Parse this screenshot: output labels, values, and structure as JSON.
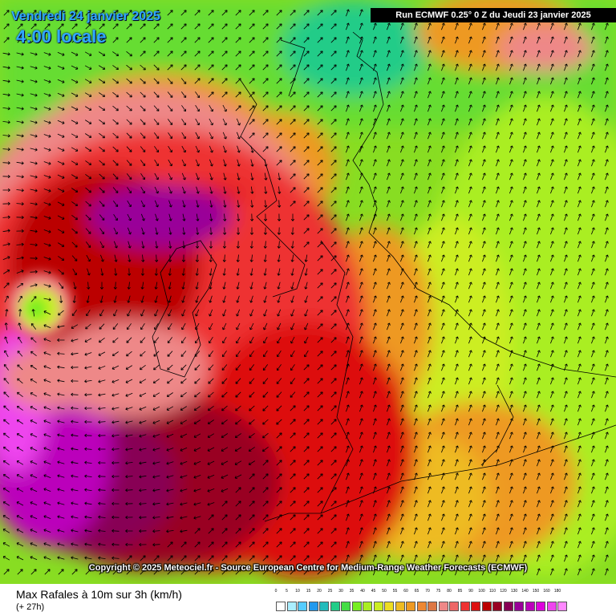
{
  "header": {
    "date": "Vendredi 24 janvier 2025",
    "time": "4:00 locale",
    "run": "Run ECMWF 0.25° 0 Z du Jeudi 23 janvier 2025"
  },
  "copyright": "Copyright © 2025 Meteociel.fr - Source European Centre for Medium-Range Weather Forecasts (ECMWF)",
  "footer": {
    "variable": "Max Rafales à 10m sur 3h (km/h)",
    "lead": "(+ 27h)"
  },
  "legend": {
    "ticks": [
      "0",
      "5",
      "10",
      "15",
      "20",
      "25",
      "30",
      "35",
      "40",
      "45",
      "50",
      "55",
      "60",
      "65",
      "70",
      "75",
      "80",
      "85",
      "90",
      "100",
      "110",
      "120",
      "130",
      "140",
      "150",
      "160",
      "180"
    ],
    "colors": [
      "#ffffff",
      "#aaeeff",
      "#55ccff",
      "#2299ee",
      "#22bbbb",
      "#22cc88",
      "#44dd44",
      "#77ee22",
      "#aaee22",
      "#ccee22",
      "#eedd22",
      "#eebb22",
      "#ee9922",
      "#ee8833",
      "#dd7744",
      "#ee8888",
      "#ee6666",
      "#ee3333",
      "#dd1111",
      "#bb0000",
      "#990022",
      "#880055",
      "#990099",
      "#bb00bb",
      "#dd00dd",
      "#ee44ee",
      "#ff88ff"
    ]
  }
}
